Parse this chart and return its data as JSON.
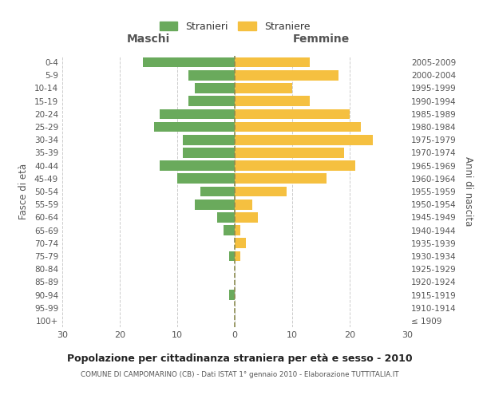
{
  "age_groups": [
    "100+",
    "95-99",
    "90-94",
    "85-89",
    "80-84",
    "75-79",
    "70-74",
    "65-69",
    "60-64",
    "55-59",
    "50-54",
    "45-49",
    "40-44",
    "35-39",
    "30-34",
    "25-29",
    "20-24",
    "15-19",
    "10-14",
    "5-9",
    "0-4"
  ],
  "birth_years": [
    "≤ 1909",
    "1910-1914",
    "1915-1919",
    "1920-1924",
    "1925-1929",
    "1930-1934",
    "1935-1939",
    "1940-1944",
    "1945-1949",
    "1950-1954",
    "1955-1959",
    "1960-1964",
    "1965-1969",
    "1970-1974",
    "1975-1979",
    "1980-1984",
    "1985-1989",
    "1990-1994",
    "1995-1999",
    "2000-2004",
    "2005-2009"
  ],
  "maschi": [
    0,
    0,
    1,
    0,
    0,
    1,
    0,
    2,
    3,
    7,
    6,
    10,
    13,
    9,
    9,
    14,
    13,
    8,
    7,
    8,
    16
  ],
  "femmine": [
    0,
    0,
    0,
    0,
    0,
    1,
    2,
    1,
    4,
    3,
    9,
    16,
    21,
    19,
    24,
    22,
    20,
    13,
    10,
    18,
    13
  ],
  "male_color": "#6aaa5c",
  "female_color": "#f5c040",
  "dashed_line_color": "#8b8b50",
  "background_color": "#ffffff",
  "grid_color": "#cccccc",
  "title": "Popolazione per cittadinanza straniera per età e sesso - 2010",
  "subtitle": "COMUNE DI CAMPOMARINO (CB) - Dati ISTAT 1° gennaio 2010 - Elaborazione TUTTITALIA.IT",
  "xlabel_left": "Maschi",
  "xlabel_right": "Femmine",
  "ylabel_left": "Fasce di età",
  "ylabel_right": "Anni di nascita",
  "xlim": 30,
  "legend_stranieri": "Stranieri",
  "legend_straniere": "Straniere"
}
